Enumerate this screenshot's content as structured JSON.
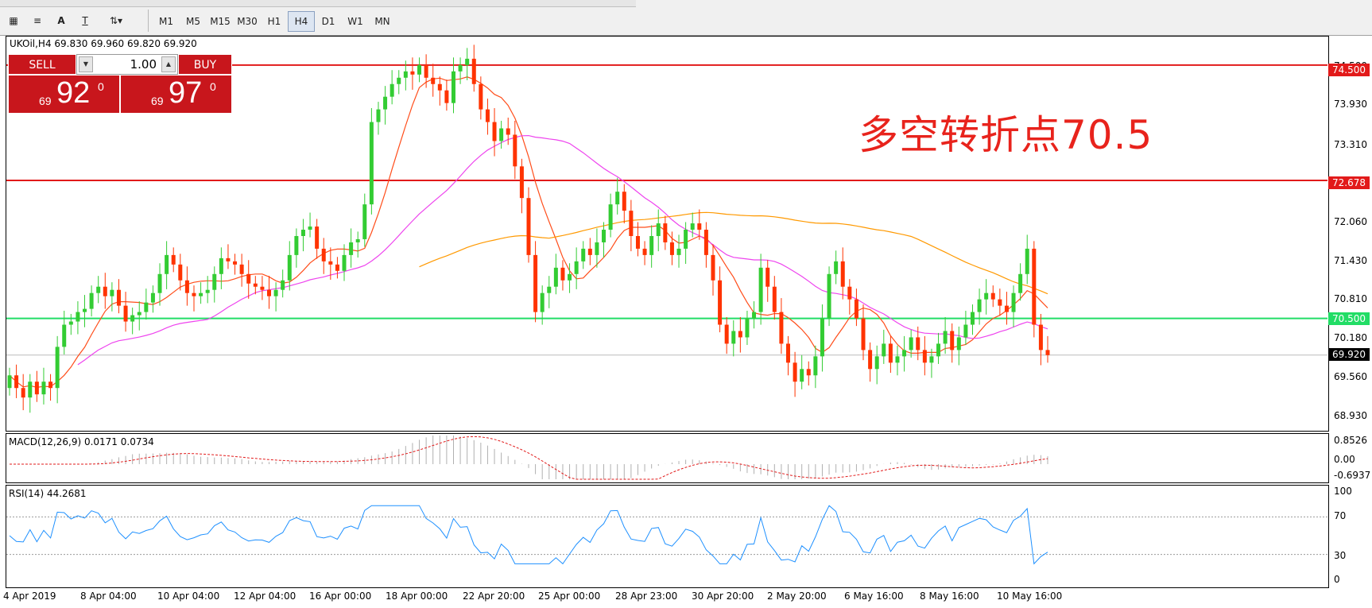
{
  "toolbar": {
    "text_tool": "A",
    "text_label_tool": "T",
    "timeframes": [
      "M1",
      "M5",
      "M15",
      "M30",
      "H1",
      "H4",
      "D1",
      "W1",
      "MN"
    ],
    "active_timeframe": "H4"
  },
  "symbol_line": "UKOil,H4  69.830 69.960 69.820 69.920",
  "trade_panel": {
    "sell_label": "SELL",
    "buy_label": "BUY",
    "lot": "1.00",
    "sell_prefix": "69",
    "sell_big": "92",
    "sell_sup": "0",
    "buy_prefix": "69",
    "buy_big": "97",
    "buy_sup": "0"
  },
  "annotation": "多空转折点70.5",
  "price_axis_ticks": [
    "74.500",
    "73.930",
    "73.310",
    "72.060",
    "71.430",
    "70.810",
    "70.180",
    "69.560",
    "68.930"
  ],
  "price_tags": {
    "top": "74.500",
    "mid": "72.678",
    "green": "70.500",
    "current": "69.920"
  },
  "macd": {
    "label": "MACD(12,26,9) 0.0171 0.0734",
    "ticks": [
      "0.8526",
      "0.00",
      "-0.6937"
    ]
  },
  "rsi": {
    "label": "RSI(14) 44.2681",
    "ticks": [
      "100",
      "70",
      "30",
      "0"
    ]
  },
  "colors": {
    "bull": "#33cc33",
    "bear": "#ff3300",
    "ma_fast": "#ff4d1a",
    "ma_mid": "#ee44ee",
    "ma_slow": "#ff9900",
    "hline_red": "#e21a1a",
    "hline_green": "#22dd66",
    "rsi_line": "#1e90ff"
  },
  "chart_data": {
    "type": "candlestick",
    "symbol": "UKOil",
    "timeframe": "H4",
    "x_labels": [
      "4 Apr 2019",
      "8 Apr 04:00",
      "10 Apr 04:00",
      "12 Apr 04:00",
      "16 Apr 00:00",
      "18 Apr 00:00",
      "22 Apr 20:00",
      "25 Apr 00:00",
      "28 Apr 23:00",
      "30 Apr 20:00",
      "2 May 20:00",
      "6 May 16:00",
      "8 May 16:00",
      "10 May 16:00"
    ],
    "ylim": [
      68.75,
      74.95
    ],
    "horizontal_lines": [
      74.5,
      72.678,
      70.5
    ],
    "current_price": 69.92,
    "candles_close": [
      69.6,
      69.4,
      69.25,
      69.5,
      69.3,
      69.5,
      69.4,
      70.05,
      70.4,
      70.45,
      70.6,
      70.65,
      70.9,
      71.0,
      70.85,
      70.95,
      70.7,
      70.45,
      70.55,
      70.6,
      70.75,
      70.9,
      71.2,
      71.5,
      71.35,
      71.1,
      70.9,
      70.85,
      70.9,
      70.95,
      71.2,
      71.45,
      71.4,
      71.35,
      71.2,
      71.05,
      71.0,
      70.95,
      70.85,
      70.95,
      71.1,
      71.5,
      71.8,
      71.9,
      71.95,
      71.6,
      71.4,
      71.35,
      71.25,
      71.5,
      71.7,
      71.75,
      72.3,
      73.6,
      73.8,
      74.0,
      74.2,
      74.3,
      74.4,
      74.35,
      74.5,
      74.3,
      74.2,
      74.1,
      73.9,
      74.4,
      74.5,
      74.6,
      74.2,
      73.8,
      73.6,
      73.3,
      73.5,
      73.4,
      72.9,
      72.4,
      71.5,
      70.6,
      70.9,
      71.0,
      71.3,
      71.1,
      71.2,
      71.4,
      71.6,
      71.5,
      71.7,
      71.9,
      72.3,
      72.5,
      72.2,
      71.8,
      71.6,
      71.5,
      71.8,
      72.0,
      71.7,
      71.5,
      71.6,
      71.9,
      72.0,
      71.9,
      71.5,
      71.1,
      70.4,
      70.1,
      70.3,
      70.2,
      70.5,
      70.6,
      71.3,
      71.0,
      70.6,
      70.1,
      69.8,
      69.5,
      69.7,
      69.6,
      69.9,
      70.5,
      71.2,
      71.4,
      71.0,
      70.8,
      70.5,
      70.0,
      69.7,
      69.9,
      70.1,
      69.8,
      69.9,
      70.0,
      70.2,
      70.0,
      69.8,
      69.9,
      70.1,
      70.3,
      70.0,
      70.2,
      70.4,
      70.6,
      70.8,
      70.9,
      70.8,
      70.7,
      70.6,
      70.9,
      71.2,
      71.6,
      70.4,
      70.0,
      69.92
    ]
  }
}
